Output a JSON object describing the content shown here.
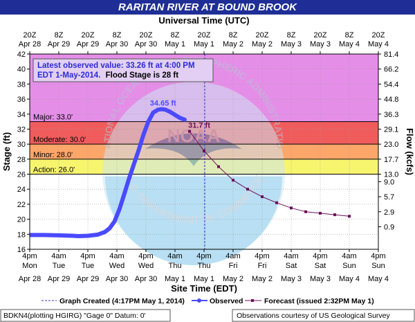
{
  "title": "RARITAN RIVER AT BOUND BROOK",
  "colors": {
    "title_bar": "#1f2e96",
    "major_zone": "#e58ee8",
    "moderate_zone": "#f05c5c",
    "minor_zone": "#fda66a",
    "action_zone": "#f7f56e",
    "normal_zone": "#ffffff",
    "observed": "#4a4aff",
    "forecast": "#6b0f5a",
    "info_box_bg": "#e2cff3",
    "info_text": "#2b2bd8",
    "graph_created_line": "#3333cc"
  },
  "chart_data": {
    "type": "line",
    "top_axis": {
      "title": "Universal Time (UTC)",
      "ticks": [
        {
          "time": "20Z",
          "date": "Apr 28"
        },
        {
          "time": "8Z",
          "date": "Apr 29"
        },
        {
          "time": "20Z",
          "date": "Apr 29"
        },
        {
          "time": "8Z",
          "date": "Apr 30"
        },
        {
          "time": "20Z",
          "date": "Apr 30"
        },
        {
          "time": "8Z",
          "date": "May 1"
        },
        {
          "time": "20Z",
          "date": "May 1"
        },
        {
          "time": "8Z",
          "date": "May 2"
        },
        {
          "time": "20Z",
          "date": "May 2"
        },
        {
          "time": "8Z",
          "date": "May 3"
        },
        {
          "time": "20Z",
          "date": "May 3"
        },
        {
          "time": "8Z",
          "date": "May 4"
        },
        {
          "time": "20Z",
          "date": "May 4"
        }
      ]
    },
    "bottom_axis": {
      "title": "Site Time (EDT)",
      "ticks": [
        {
          "time": "4pm",
          "day": "Mon",
          "date": "Apr 28"
        },
        {
          "time": "4am",
          "day": "Tue",
          "date": "Apr 29"
        },
        {
          "time": "4pm",
          "day": "Tue",
          "date": "Apr 29"
        },
        {
          "time": "4am",
          "day": "Wed",
          "date": "Apr 30"
        },
        {
          "time": "4pm",
          "day": "Wed",
          "date": "Apr 30"
        },
        {
          "time": "4am",
          "day": "Thu",
          "date": "May 1"
        },
        {
          "time": "4pm",
          "day": "Thu",
          "date": "May 1"
        },
        {
          "time": "4am",
          "day": "Fri",
          "date": "May 2"
        },
        {
          "time": "4pm",
          "day": "Fri",
          "date": "May 2"
        },
        {
          "time": "4am",
          "day": "Sat",
          "date": "May 3"
        },
        {
          "time": "4pm",
          "day": "Sat",
          "date": "May 3"
        },
        {
          "time": "4am",
          "day": "Sun",
          "date": "May 4"
        },
        {
          "time": "4pm",
          "day": "Sun",
          "date": "May 4"
        }
      ]
    },
    "left_axis": {
      "title": "Stage (ft)",
      "range": [
        16,
        42
      ],
      "ticks": [
        16,
        18,
        20,
        22,
        24,
        26,
        28,
        30,
        32,
        34,
        36,
        38,
        40,
        42
      ]
    },
    "right_axis": {
      "title": "Flow (kcfs)",
      "ticks": [
        {
          "label": "0.9",
          "stage": 19
        },
        {
          "label": "2.9",
          "stage": 21
        },
        {
          "label": "5.7",
          "stage": 23
        },
        {
          "label": "9.0",
          "stage": 25
        },
        {
          "label": "13.0",
          "stage": 26
        },
        {
          "label": "17.7",
          "stage": 28
        },
        {
          "label": "23.0",
          "stage": 30
        },
        {
          "label": "29.1",
          "stage": 32
        },
        {
          "label": "36.3",
          "stage": 34
        },
        {
          "label": "44.8",
          "stage": 36
        },
        {
          "label": "54.4",
          "stage": 38
        },
        {
          "label": "66.2",
          "stage": 40
        },
        {
          "label": "81.4",
          "stage": 42
        }
      ]
    },
    "flood_categories": [
      {
        "name": "Major",
        "label": "Major: 33.0'",
        "stage": 33.0
      },
      {
        "name": "Moderate",
        "label": "Moderate: 30.0'",
        "stage": 30.0
      },
      {
        "name": "Minor",
        "label": "Minor: 28.0'",
        "stage": 28.0
      },
      {
        "name": "Action",
        "label": "Action: 26.0'",
        "stage": 26.0
      }
    ],
    "info_box": {
      "line1": "Latest observed value: 33.26 ft at 4:00 PM",
      "line2_blue": "EDT 1-May-2014.",
      "line2_black": "Flood Stage is 28 ft"
    },
    "graph_created_hours": 72.28,
    "series": [
      {
        "name": "Observed",
        "peak_label": "34.65 ft",
        "points": [
          [
            0,
            17.9
          ],
          [
            6,
            17.9
          ],
          [
            12,
            17.85
          ],
          [
            18,
            17.8
          ],
          [
            20,
            17.75
          ],
          [
            24,
            17.8
          ],
          [
            28,
            17.95
          ],
          [
            31,
            18.3
          ],
          [
            33,
            18.8
          ],
          [
            35,
            19.7
          ],
          [
            37,
            21.3
          ],
          [
            39,
            23.3
          ],
          [
            41,
            25.4
          ],
          [
            43,
            27.3
          ],
          [
            45,
            29.2
          ],
          [
            47,
            31.3
          ],
          [
            49,
            33.0
          ],
          [
            51,
            34.2
          ],
          [
            53,
            34.6
          ],
          [
            54.5,
            34.65
          ],
          [
            56,
            34.6
          ],
          [
            58,
            34.3
          ],
          [
            60,
            33.9
          ],
          [
            62,
            33.5
          ],
          [
            64,
            33.26
          ]
        ]
      },
      {
        "name": "Forecast",
        "peak_label": "31.7 ft",
        "points": [
          [
            66,
            31.7
          ],
          [
            72,
            29.1
          ],
          [
            78,
            27.0
          ],
          [
            84,
            25.2
          ],
          [
            90,
            24.0
          ],
          [
            96,
            23.0
          ],
          [
            102,
            22.2
          ],
          [
            108,
            21.5
          ],
          [
            114,
            21.0
          ],
          [
            120,
            20.8
          ],
          [
            126,
            20.6
          ],
          [
            132,
            20.4
          ]
        ]
      }
    ]
  },
  "legend": {
    "graph_created": "Graph Created (4:17PM May 1, 2014)",
    "observed": "Observed",
    "forecast": "Forecast (issued 2:32PM May 1)"
  },
  "footer": {
    "left": "BDKN4(plotting HGIRG) \"Gage 0\" Datum: 0'",
    "right": "Observations courtesy of US Geological Survey"
  },
  "watermark": {
    "arc_text": "NATIONAL OCEANIC AND ATMOSPHERIC ADMINISTRATION",
    "bottom_text": "U.S. DEPARTMENT OF COMMERCE",
    "center_text": "NOAA"
  }
}
